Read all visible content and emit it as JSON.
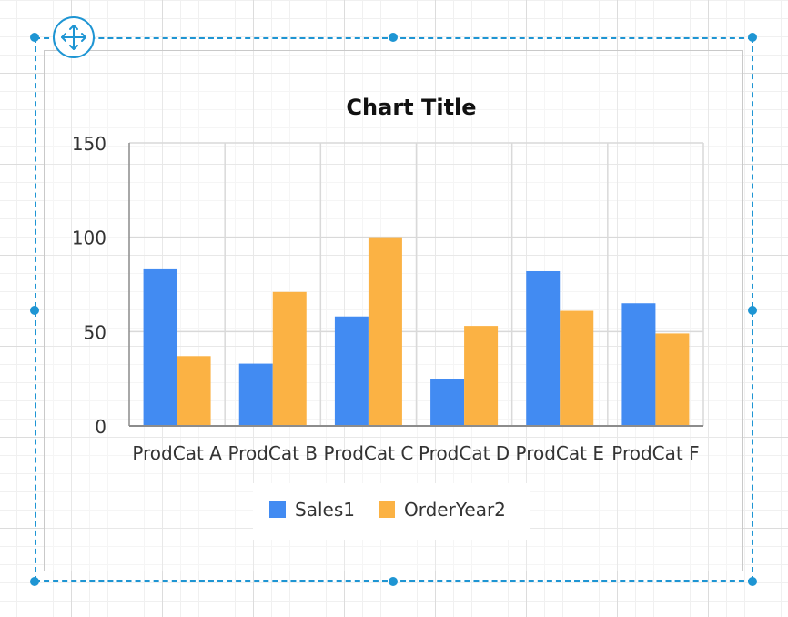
{
  "chart_data": {
    "type": "bar",
    "title": "Chart Title",
    "xlabel": "",
    "ylabel": "",
    "categories": [
      "ProdCat A",
      "ProdCat B",
      "ProdCat C",
      "ProdCat D",
      "ProdCat E",
      "ProdCat F"
    ],
    "series": [
      {
        "name": "Sales1",
        "color": "#428bf2",
        "values": [
          83,
          33,
          58,
          25,
          82,
          65
        ]
      },
      {
        "name": "OrderYear2",
        "color": "#fbb244",
        "values": [
          37,
          71,
          100,
          53,
          61,
          49
        ]
      }
    ],
    "ylim": [
      0,
      150
    ],
    "yticks": [
      "0",
      "50",
      "100",
      "150"
    ],
    "grid": true,
    "legend_position": "bottom"
  },
  "icons": {
    "move_handle": "move-arrows-icon"
  },
  "colors": {
    "selection": "#1e95d3"
  }
}
